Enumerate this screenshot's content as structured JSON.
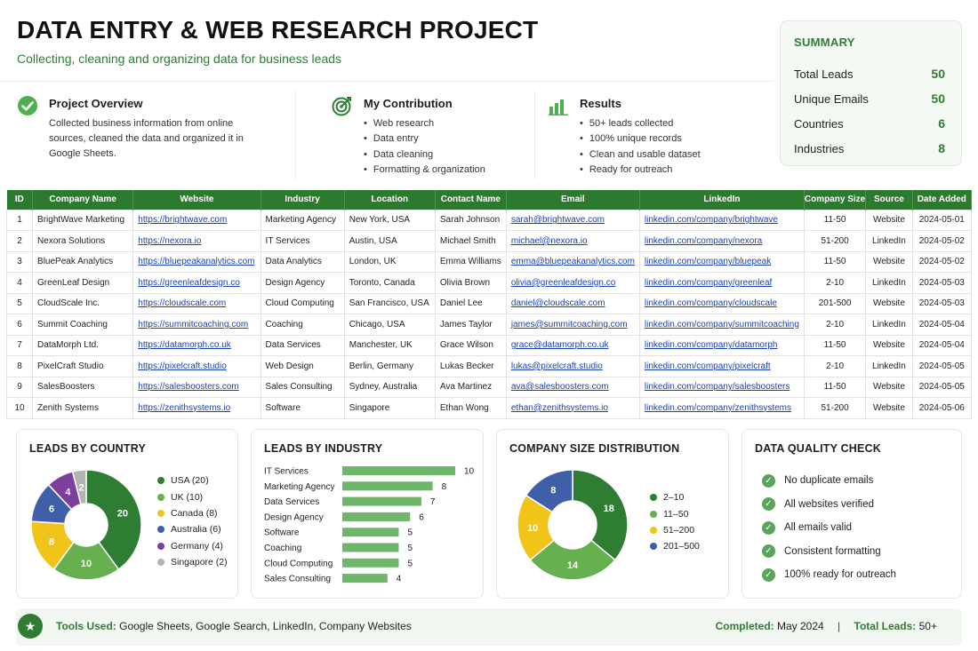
{
  "header": {
    "title": "DATA ENTRY & WEB RESEARCH PROJECT",
    "subtitle": "Collecting, cleaning and organizing data for business leads"
  },
  "summary": {
    "title": "SUMMARY",
    "rows": [
      {
        "label": "Total Leads",
        "value": "50"
      },
      {
        "label": "Unique Emails",
        "value": "50"
      },
      {
        "label": "Countries",
        "value": "6"
      },
      {
        "label": "Industries",
        "value": "8"
      }
    ]
  },
  "overview": {
    "title": "Project Overview",
    "text": "Collected business information from online sources, cleaned the data and organized it in Google Sheets."
  },
  "contribution": {
    "title": "My Contribution",
    "items": [
      "Web research",
      "Data entry",
      "Data cleaning",
      "Formatting & organization"
    ]
  },
  "results": {
    "title": "Results",
    "items": [
      "50+ leads collected",
      "100% unique records",
      "Clean and usable dataset",
      "Ready for outreach"
    ]
  },
  "table": {
    "columns": [
      "ID",
      "Company Name",
      "Website",
      "Industry",
      "Location",
      "Contact Name",
      "Email",
      "LinkedIn",
      "Company Size",
      "Source",
      "Date Added"
    ],
    "rows": [
      [
        "1",
        "BrightWave Marketing",
        "https://brightwave.com",
        "Marketing Agency",
        "New York, USA",
        "Sarah Johnson",
        "sarah@brightwave.com",
        "linkedin.com/company/brightwave",
        "11-50",
        "Website",
        "2024-05-01"
      ],
      [
        "2",
        "Nexora Solutions",
        "https://nexora.io",
        "IT Services",
        "Austin, USA",
        "Michael Smith",
        "michael@nexora.io",
        "linkedin.com/company/nexora",
        "51-200",
        "LinkedIn",
        "2024-05-02"
      ],
      [
        "3",
        "BluePeak Analytics",
        "https://bluepeakanalytics.com",
        "Data Analytics",
        "London, UK",
        "Emma Williams",
        "emma@bluepeakanalytics.com",
        "linkedin.com/company/bluepeak",
        "11-50",
        "Website",
        "2024-05-02"
      ],
      [
        "4",
        "GreenLeaf Design",
        "https://greenleafdesign.co",
        "Design Agency",
        "Toronto, Canada",
        "Olivia Brown",
        "olivia@greenleafdesign.co",
        "linkedin.com/company/greenleaf",
        "2-10",
        "LinkedIn",
        "2024-05-03"
      ],
      [
        "5",
        "CloudScale Inc.",
        "https://cloudscale.com",
        "Cloud Computing",
        "San Francisco, USA",
        "Daniel Lee",
        "daniel@cloudscale.com",
        "linkedin.com/company/cloudscale",
        "201-500",
        "Website",
        "2024-05-03"
      ],
      [
        "6",
        "Summit Coaching",
        "https://summitcoaching.com",
        "Coaching",
        "Chicago, USA",
        "James Taylor",
        "james@summitcoaching.com",
        "linkedin.com/company/summitcoaching",
        "2-10",
        "LinkedIn",
        "2024-05-04"
      ],
      [
        "7",
        "DataMorph Ltd.",
        "https://datamorph.co.uk",
        "Data Services",
        "Manchester, UK",
        "Grace Wilson",
        "grace@datamorph.co.uk",
        "linkedin.com/company/datamorph",
        "11-50",
        "Website",
        "2024-05-04"
      ],
      [
        "8",
        "PixelCraft Studio",
        "https://pixelcraft.studio",
        "Web Design",
        "Berlin, Germany",
        "Lukas Becker",
        "lukas@pixelcraft.studio",
        "linkedin.com/company/pixelcraft",
        "2-10",
        "LinkedIn",
        "2024-05-05"
      ],
      [
        "9",
        "SalesBoosters",
        "https://salesboosters.com",
        "Sales Consulting",
        "Sydney, Australia",
        "Ava Martinez",
        "ava@salesboosters.com",
        "linkedin.com/company/salesboosters",
        "11-50",
        "Website",
        "2024-05-05"
      ],
      [
        "10",
        "Zenith Systems",
        "https://zenithsystems.io",
        "Software",
        "Singapore",
        "Ethan Wong",
        "ethan@zenithsystems.io",
        "linkedin.com/company/zenithsystems",
        "51-200",
        "Website",
        "2024-05-06"
      ]
    ]
  },
  "chart_data": [
    {
      "type": "pie",
      "title": "LEADS BY COUNTRY",
      "categories": [
        "USA",
        "UK",
        "Canada",
        "Australia",
        "Germany",
        "Singapore"
      ],
      "values": [
        20,
        10,
        8,
        6,
        4,
        2
      ],
      "legend": [
        "USA (20)",
        "UK (10)",
        "Canada (8)",
        "Australia (6)",
        "Germany (4)",
        "Singapore (2)"
      ],
      "colors": [
        "#2e7d32",
        "#66b04f",
        "#f0c419",
        "#3f5fa8",
        "#7b3f9e",
        "#b3b3b3"
      ],
      "legend_position": "right"
    },
    {
      "type": "bar",
      "orientation": "horizontal",
      "title": "LEADS BY INDUSTRY",
      "categories": [
        "IT Services",
        "Marketing Agency",
        "Data Services",
        "Design Agency",
        "Software",
        "Coaching",
        "Cloud Computing",
        "Sales Consulting"
      ],
      "values": [
        10,
        8,
        7,
        6,
        5,
        5,
        5,
        4
      ],
      "color": "#6db66a",
      "xlim": [
        0,
        10
      ]
    },
    {
      "type": "pie",
      "title": "COMPANY SIZE DISTRIBUTION",
      "categories": [
        "2-10",
        "11-50",
        "51-200",
        "201-500"
      ],
      "values": [
        18,
        14,
        10,
        8
      ],
      "legend": [
        "2–10",
        "11–50",
        "51–200",
        "201–500"
      ],
      "colors": [
        "#2e7d32",
        "#66b04f",
        "#f0c419",
        "#3f5fa8"
      ],
      "legend_position": "right"
    }
  ],
  "quality": {
    "title": "DATA QUALITY CHECK",
    "items": [
      "No duplicate emails",
      "All websites verified",
      "All emails valid",
      "Consistent formatting",
      "100% ready for outreach"
    ]
  },
  "footer": {
    "tools_label": "Tools Used:",
    "tools_value": " Google Sheets, Google Search, LinkedIn, Company Websites",
    "completed_label": "Completed:",
    "completed_value": " May 2024",
    "separator": "|",
    "total_label": "Total Leads:",
    "total_value": " 50+"
  }
}
